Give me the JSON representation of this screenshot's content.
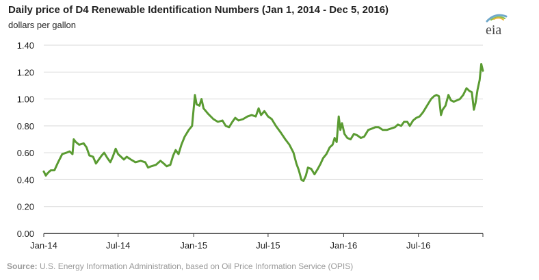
{
  "header": {
    "title": "Daily price of D4 Renewable Identification Numbers (Jan 1, 2014 - Dec 5, 2016)",
    "units": "dollars per gallon"
  },
  "logo": {
    "text": "eia",
    "icon": "eia-logo-icon"
  },
  "source": {
    "label": "Source:",
    "text": " U.S. Energy Information Administration, based on Oil Price Information Service (OPIS)"
  },
  "colors": {
    "line": "#5a9b32",
    "axis": "#333333",
    "grid": "#d9d9d9"
  },
  "chart_data": {
    "type": "line",
    "title": "Daily price of D4 Renewable Identification Numbers (Jan 1, 2014 - Dec 5, 2016)",
    "ylabel": "dollars per gallon",
    "xlabel": "",
    "ylim": [
      0,
      1.4
    ],
    "xlim": [
      "2014-01-01",
      "2016-12-05"
    ],
    "grid": "horizontal",
    "legend": "none",
    "y_ticks": [
      "0.00",
      "0.20",
      "0.40",
      "0.60",
      "0.80",
      "1.00",
      "1.20",
      "1.40"
    ],
    "x_ticks": [
      {
        "label": "Jan-14",
        "date": "2014-01-01"
      },
      {
        "label": "Jul-14",
        "date": "2014-07-01"
      },
      {
        "label": "Jan-15",
        "date": "2015-01-01"
      },
      {
        "label": "Jul-15",
        "date": "2015-07-01"
      },
      {
        "label": "Jan-16",
        "date": "2016-01-01"
      },
      {
        "label": "Jul-16",
        "date": "2016-07-01"
      }
    ],
    "series": [
      {
        "color": "#5a9b32",
        "points": [
          [
            "2014-01-01",
            0.46
          ],
          [
            "2014-01-06",
            0.43
          ],
          [
            "2014-01-11",
            0.45
          ],
          [
            "2014-01-18",
            0.47
          ],
          [
            "2014-01-27",
            0.47
          ],
          [
            "2014-02-05",
            0.53
          ],
          [
            "2014-02-15",
            0.59
          ],
          [
            "2014-02-25",
            0.6
          ],
          [
            "2014-03-05",
            0.61
          ],
          [
            "2014-03-12",
            0.59
          ],
          [
            "2014-03-15",
            0.7
          ],
          [
            "2014-03-20",
            0.68
          ],
          [
            "2014-03-28",
            0.66
          ],
          [
            "2014-04-08",
            0.67
          ],
          [
            "2014-04-15",
            0.64
          ],
          [
            "2014-04-22",
            0.58
          ],
          [
            "2014-05-01",
            0.57
          ],
          [
            "2014-05-08",
            0.52
          ],
          [
            "2014-05-15",
            0.55
          ],
          [
            "2014-05-22",
            0.58
          ],
          [
            "2014-05-28",
            0.6
          ],
          [
            "2014-06-05",
            0.56
          ],
          [
            "2014-06-12",
            0.53
          ],
          [
            "2014-06-18",
            0.57
          ],
          [
            "2014-06-25",
            0.63
          ],
          [
            "2014-07-01",
            0.59
          ],
          [
            "2014-07-08",
            0.57
          ],
          [
            "2014-07-15",
            0.55
          ],
          [
            "2014-07-22",
            0.57
          ],
          [
            "2014-08-01",
            0.55
          ],
          [
            "2014-08-12",
            0.53
          ],
          [
            "2014-08-25",
            0.54
          ],
          [
            "2014-09-05",
            0.53
          ],
          [
            "2014-09-12",
            0.49
          ],
          [
            "2014-09-20",
            0.5
          ],
          [
            "2014-10-01",
            0.51
          ],
          [
            "2014-10-12",
            0.54
          ],
          [
            "2014-10-20",
            0.52
          ],
          [
            "2014-10-27",
            0.5
          ],
          [
            "2014-11-05",
            0.51
          ],
          [
            "2014-11-12",
            0.58
          ],
          [
            "2014-11-18",
            0.62
          ],
          [
            "2014-11-25",
            0.59
          ],
          [
            "2014-12-02",
            0.66
          ],
          [
            "2014-12-10",
            0.72
          ],
          [
            "2014-12-20",
            0.77
          ],
          [
            "2014-12-28",
            0.8
          ],
          [
            "2015-01-04",
            1.03
          ],
          [
            "2015-01-08",
            0.96
          ],
          [
            "2015-01-15",
            0.95
          ],
          [
            "2015-01-20",
            1.0
          ],
          [
            "2015-01-25",
            0.93
          ],
          [
            "2015-02-05",
            0.89
          ],
          [
            "2015-02-18",
            0.85
          ],
          [
            "2015-03-01",
            0.83
          ],
          [
            "2015-03-12",
            0.84
          ],
          [
            "2015-03-20",
            0.8
          ],
          [
            "2015-03-28",
            0.79
          ],
          [
            "2015-04-05",
            0.83
          ],
          [
            "2015-04-12",
            0.86
          ],
          [
            "2015-04-20",
            0.84
          ],
          [
            "2015-05-01",
            0.85
          ],
          [
            "2015-05-12",
            0.87
          ],
          [
            "2015-05-22",
            0.88
          ],
          [
            "2015-06-01",
            0.87
          ],
          [
            "2015-06-08",
            0.93
          ],
          [
            "2015-06-14",
            0.88
          ],
          [
            "2015-06-22",
            0.91
          ],
          [
            "2015-07-01",
            0.87
          ],
          [
            "2015-07-10",
            0.85
          ],
          [
            "2015-07-20",
            0.8
          ],
          [
            "2015-08-01",
            0.75
          ],
          [
            "2015-08-12",
            0.7
          ],
          [
            "2015-08-22",
            0.66
          ],
          [
            "2015-09-01",
            0.6
          ],
          [
            "2015-09-08",
            0.52
          ],
          [
            "2015-09-14",
            0.47
          ],
          [
            "2015-09-20",
            0.4
          ],
          [
            "2015-09-25",
            0.39
          ],
          [
            "2015-10-01",
            0.43
          ],
          [
            "2015-10-06",
            0.49
          ],
          [
            "2015-10-14",
            0.48
          ],
          [
            "2015-10-22",
            0.44
          ],
          [
            "2015-10-30",
            0.48
          ],
          [
            "2015-11-06",
            0.52
          ],
          [
            "2015-11-12",
            0.56
          ],
          [
            "2015-11-20",
            0.59
          ],
          [
            "2015-11-28",
            0.64
          ],
          [
            "2015-12-05",
            0.66
          ],
          [
            "2015-12-10",
            0.71
          ],
          [
            "2015-12-15",
            0.68
          ],
          [
            "2015-12-20",
            0.87
          ],
          [
            "2015-12-24",
            0.77
          ],
          [
            "2015-12-28",
            0.82
          ],
          [
            "2016-01-03",
            0.74
          ],
          [
            "2016-01-10",
            0.71
          ],
          [
            "2016-01-18",
            0.7
          ],
          [
            "2016-01-26",
            0.74
          ],
          [
            "2016-02-03",
            0.73
          ],
          [
            "2016-02-12",
            0.71
          ],
          [
            "2016-02-20",
            0.72
          ],
          [
            "2016-03-01",
            0.77
          ],
          [
            "2016-03-10",
            0.78
          ],
          [
            "2016-03-18",
            0.79
          ],
          [
            "2016-03-26",
            0.79
          ],
          [
            "2016-04-05",
            0.77
          ],
          [
            "2016-04-15",
            0.77
          ],
          [
            "2016-04-25",
            0.78
          ],
          [
            "2016-05-05",
            0.79
          ],
          [
            "2016-05-12",
            0.81
          ],
          [
            "2016-05-20",
            0.8
          ],
          [
            "2016-05-27",
            0.83
          ],
          [
            "2016-06-04",
            0.83
          ],
          [
            "2016-06-10",
            0.8
          ],
          [
            "2016-06-18",
            0.84
          ],
          [
            "2016-06-26",
            0.86
          ],
          [
            "2016-07-04",
            0.87
          ],
          [
            "2016-07-12",
            0.9
          ],
          [
            "2016-07-18",
            0.93
          ],
          [
            "2016-07-24",
            0.96
          ],
          [
            "2016-08-01",
            1.0
          ],
          [
            "2016-08-08",
            1.02
          ],
          [
            "2016-08-14",
            1.03
          ],
          [
            "2016-08-20",
            1.02
          ],
          [
            "2016-08-25",
            0.88
          ],
          [
            "2016-08-29",
            0.92
          ],
          [
            "2016-09-05",
            0.95
          ],
          [
            "2016-09-12",
            1.03
          ],
          [
            "2016-09-18",
            0.99
          ],
          [
            "2016-09-25",
            0.98
          ],
          [
            "2016-10-03",
            0.99
          ],
          [
            "2016-10-10",
            1.0
          ],
          [
            "2016-10-18",
            1.03
          ],
          [
            "2016-10-26",
            1.08
          ],
          [
            "2016-11-02",
            1.06
          ],
          [
            "2016-11-08",
            1.05
          ],
          [
            "2016-11-13",
            0.92
          ],
          [
            "2016-11-17",
            0.97
          ],
          [
            "2016-11-22",
            1.07
          ],
          [
            "2016-11-27",
            1.14
          ],
          [
            "2016-12-01",
            1.26
          ],
          [
            "2016-12-05",
            1.21
          ]
        ]
      }
    ]
  }
}
